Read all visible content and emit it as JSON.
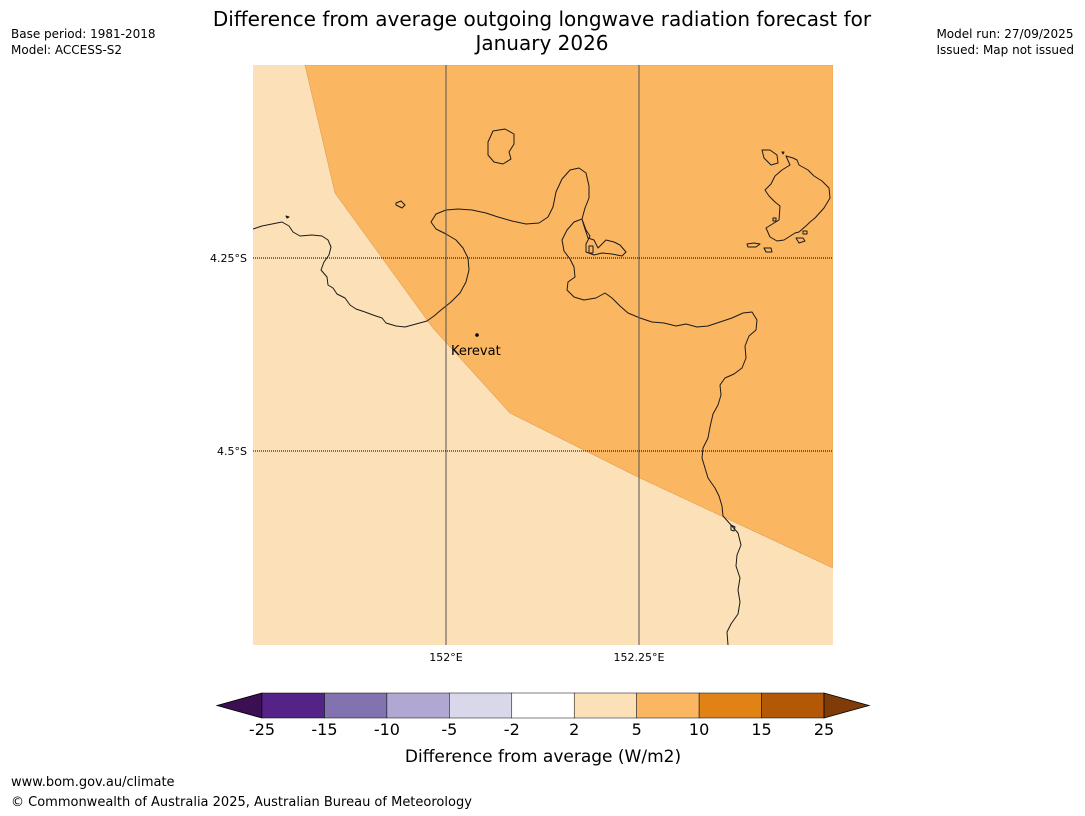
{
  "title_line1": "Difference from average outgoing longwave radiation forecast for",
  "title_line2": "January 2026",
  "meta_left": [
    "Base period: 1981-2018",
    "Model: ACCESS-S2"
  ],
  "meta_right": [
    "Model run: 27/09/2025",
    "Issued: Map not issued"
  ],
  "map": {
    "lat_labels": [
      "4.25°S",
      "4.5°S"
    ],
    "lon_labels": [
      "152°E",
      "152.25°E"
    ],
    "place": "Kerevat"
  },
  "colors": {
    "zone_2_to_5": "#fce0b7",
    "zone_5_to_10": "#fbb661",
    "coastline": "#1a1a1a"
  },
  "colorbar": {
    "label": "Difference from average (W/m2)",
    "ticks": [
      "-25",
      "-15",
      "-10",
      "-5",
      "-2",
      "2",
      "5",
      "10",
      "15",
      "25"
    ],
    "colors": [
      "#3b0f52",
      "#552288",
      "#8273b0",
      "#b0a8d2",
      "#d8d8ea",
      "#ffffff",
      "#fce0b7",
      "#fbb661",
      "#e08214",
      "#b35806",
      "#7f3b08"
    ]
  },
  "footer_url": "www.bom.gov.au/climate",
  "footer_copyright": "© Commonwealth of Australia 2025, Australian Bureau of Meteorology"
}
